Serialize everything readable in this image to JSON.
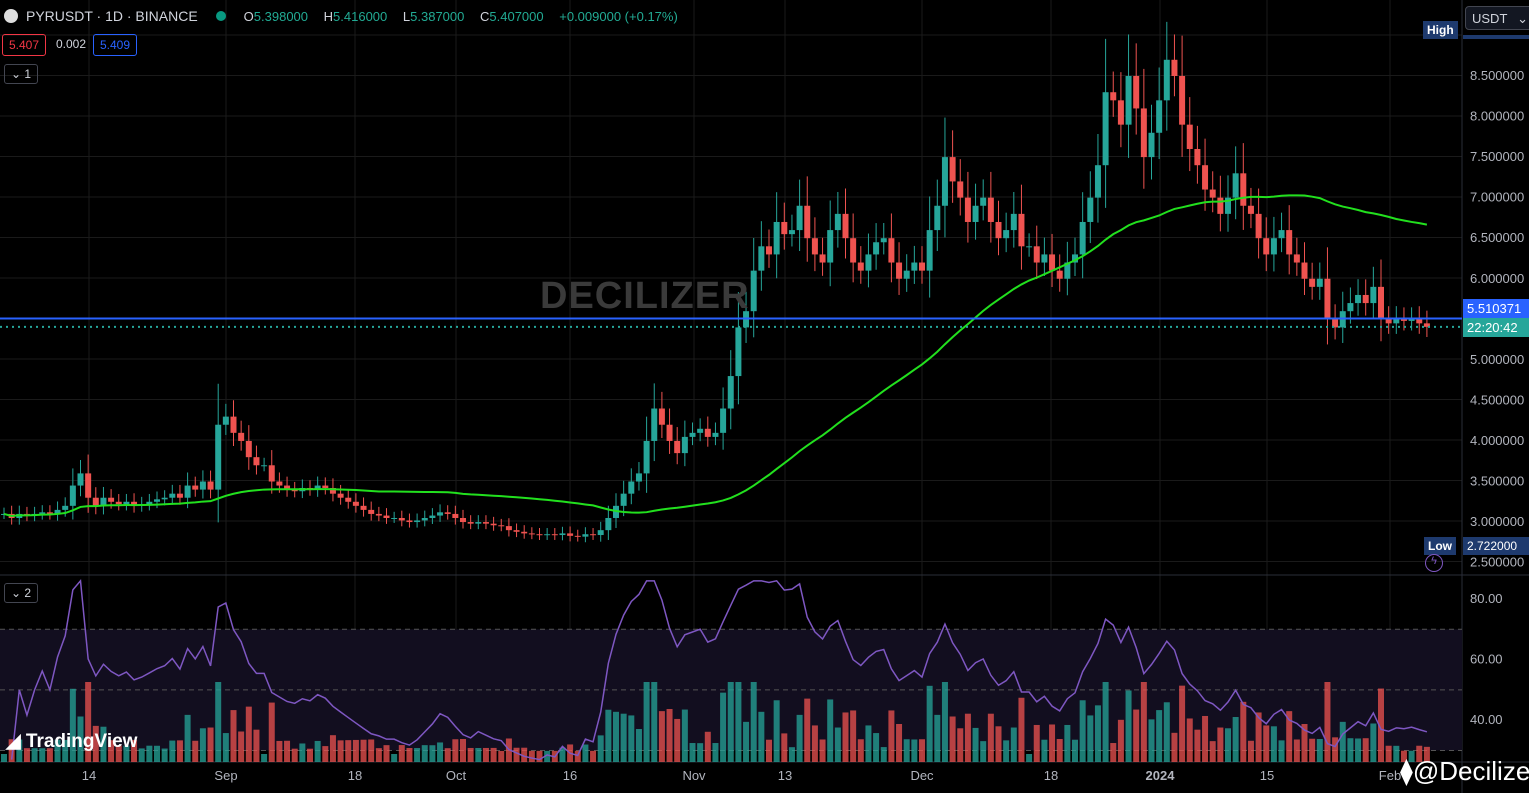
{
  "header": {
    "symbol": "PYRUSDT · 1D · BINANCE",
    "open_label": "O",
    "open": "5.398000",
    "high_label": "H",
    "high": "5.416000",
    "low_label": "L",
    "low": "5.387000",
    "close_label": "C",
    "close": "5.407000",
    "change": "+0.009000 (+0.17%)",
    "bid": "5.407",
    "spread": "0.002",
    "ask": "5.409"
  },
  "panes": {
    "price_pane": "1",
    "rsi_pane": "2"
  },
  "currency": "USDT",
  "labels": {
    "high": "High",
    "low": "Low",
    "low_value": "2.722000",
    "last_price": "5.510371",
    "countdown": "22:20:42"
  },
  "watermark": "DECILIZER",
  "branding": {
    "tradingview": "TradingView",
    "author": "@Decilizer"
  },
  "colors": {
    "up": "#26a69a",
    "down": "#ef5350",
    "ma": "#22e01e",
    "rsi": "#7e57c2",
    "price_line": "#2962ff"
  },
  "chart_data": [
    {
      "type": "candlestick",
      "start_date": "2023-08-03",
      "interval": "1D",
      "closes": [
        3.1,
        3.05,
        3.1,
        3.08,
        3.1,
        3.12,
        3.1,
        3.15,
        3.2,
        3.45,
        3.6,
        3.3,
        3.2,
        3.3,
        3.25,
        3.22,
        3.25,
        3.2,
        3.22,
        3.25,
        3.28,
        3.3,
        3.35,
        3.3,
        3.45,
        3.4,
        3.5,
        3.4,
        4.2,
        4.3,
        4.1,
        4.0,
        3.8,
        3.7,
        3.7,
        3.5,
        3.45,
        3.4,
        3.38,
        3.42,
        3.4,
        3.45,
        3.42,
        3.35,
        3.3,
        3.25,
        3.2,
        3.15,
        3.1,
        3.08,
        3.05,
        3.05,
        3.02,
        3.0,
        3.02,
        3.05,
        3.08,
        3.12,
        3.1,
        3.05,
        3.0,
        2.98,
        3.0,
        2.98,
        2.96,
        2.95,
        2.9,
        2.88,
        2.86,
        2.85,
        2.84,
        2.85,
        2.84,
        2.86,
        2.83,
        2.82,
        2.85,
        2.84,
        2.9,
        3.05,
        3.2,
        3.35,
        3.5,
        3.6,
        4.0,
        4.4,
        4.2,
        4.0,
        3.85,
        4.05,
        4.1,
        4.15,
        4.05,
        4.1,
        4.4,
        4.8,
        5.4,
        5.6,
        6.1,
        6.4,
        6.3,
        6.7,
        6.55,
        6.6,
        6.9,
        6.5,
        6.3,
        6.2,
        6.6,
        6.8,
        6.5,
        6.2,
        6.1,
        6.3,
        6.45,
        6.5,
        6.2,
        6.0,
        6.1,
        6.2,
        6.1,
        6.6,
        6.9,
        7.5,
        7.2,
        7.0,
        6.7,
        6.9,
        7.0,
        6.7,
        6.5,
        6.6,
        6.8,
        6.4,
        6.4,
        6.2,
        6.3,
        6.1,
        6.0,
        6.2,
        6.3,
        6.7,
        7.0,
        7.4,
        8.3,
        8.2,
        7.9,
        8.5,
        8.1,
        7.5,
        7.8,
        8.2,
        8.7,
        8.5,
        7.9,
        7.6,
        7.4,
        7.1,
        7.0,
        6.8,
        7.0,
        7.3,
        6.9,
        6.8,
        6.5,
        6.3,
        6.5,
        6.6,
        6.3,
        6.2,
        6.0,
        5.9,
        6.0,
        5.5,
        5.4,
        5.6,
        5.7,
        5.8,
        5.7,
        5.9,
        5.5,
        5.45,
        5.5,
        5.48,
        5.5,
        5.45,
        5.407
      ],
      "y_ticks": [
        "8.500000",
        "8.000000",
        "7.500000",
        "7.000000",
        "6.500000",
        "6.000000",
        "5.000000",
        "4.500000",
        "4.000000",
        "3.500000",
        "3.000000",
        "2.500000"
      ],
      "ylim": [
        2.4,
        9.0
      ],
      "overlay": "moving average"
    },
    {
      "type": "line",
      "series": "RSI",
      "y_ticks": [
        "80.00",
        "60.00",
        "40.00"
      ],
      "ylim": [
        25,
        87
      ],
      "bands": [
        30,
        50,
        70
      ]
    }
  ],
  "x_axis": [
    "14",
    "Sep",
    "18",
    "Oct",
    "16",
    "Nov",
    "13",
    "Dec",
    "18",
    "2024",
    "15",
    "Feb"
  ]
}
